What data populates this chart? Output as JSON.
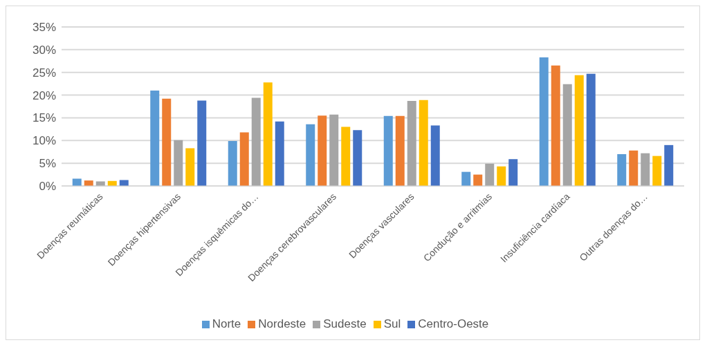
{
  "chart_data": {
    "type": "bar",
    "categories": [
      "Doenças reumáticas",
      "Doenças hipertensivas",
      "Doenças isquêmicas do…",
      "Doenças cerebrovasculares",
      "Doenças vasculares",
      "Condução e arritmias",
      "Insuficiência cardíaca",
      "Outras doenças do…"
    ],
    "series": [
      {
        "name": "Norte",
        "color": "#5b9bd5",
        "values": [
          1.6,
          21.0,
          9.9,
          13.6,
          15.4,
          3.1,
          28.3,
          7.0
        ]
      },
      {
        "name": "Nordeste",
        "color": "#ed7d31",
        "values": [
          1.2,
          19.2,
          11.8,
          15.5,
          15.4,
          2.5,
          26.5,
          7.8
        ]
      },
      {
        "name": "Sudeste",
        "color": "#a5a5a5",
        "values": [
          1.0,
          10.1,
          19.4,
          15.7,
          18.7,
          4.9,
          22.4,
          7.2
        ]
      },
      {
        "name": "Sul",
        "color": "#ffc000",
        "values": [
          1.1,
          8.3,
          22.8,
          13.0,
          18.9,
          4.3,
          24.4,
          6.6
        ]
      },
      {
        "name": "Centro-Oeste",
        "color": "#4472c4",
        "values": [
          1.3,
          18.8,
          14.2,
          12.3,
          13.3,
          5.9,
          24.7,
          9.0
        ]
      }
    ],
    "ylim": [
      0,
      35
    ],
    "yticks": [
      {
        "value": 0,
        "label": "0%"
      },
      {
        "value": 5,
        "label": "5%"
      },
      {
        "value": 10,
        "label": "10%"
      },
      {
        "value": 15,
        "label": "15%"
      },
      {
        "value": 20,
        "label": "20%"
      },
      {
        "value": 25,
        "label": "25%"
      },
      {
        "value": 30,
        "label": "30%"
      },
      {
        "value": 35,
        "label": "35%"
      }
    ],
    "grid": "y",
    "legend": "bottom"
  }
}
